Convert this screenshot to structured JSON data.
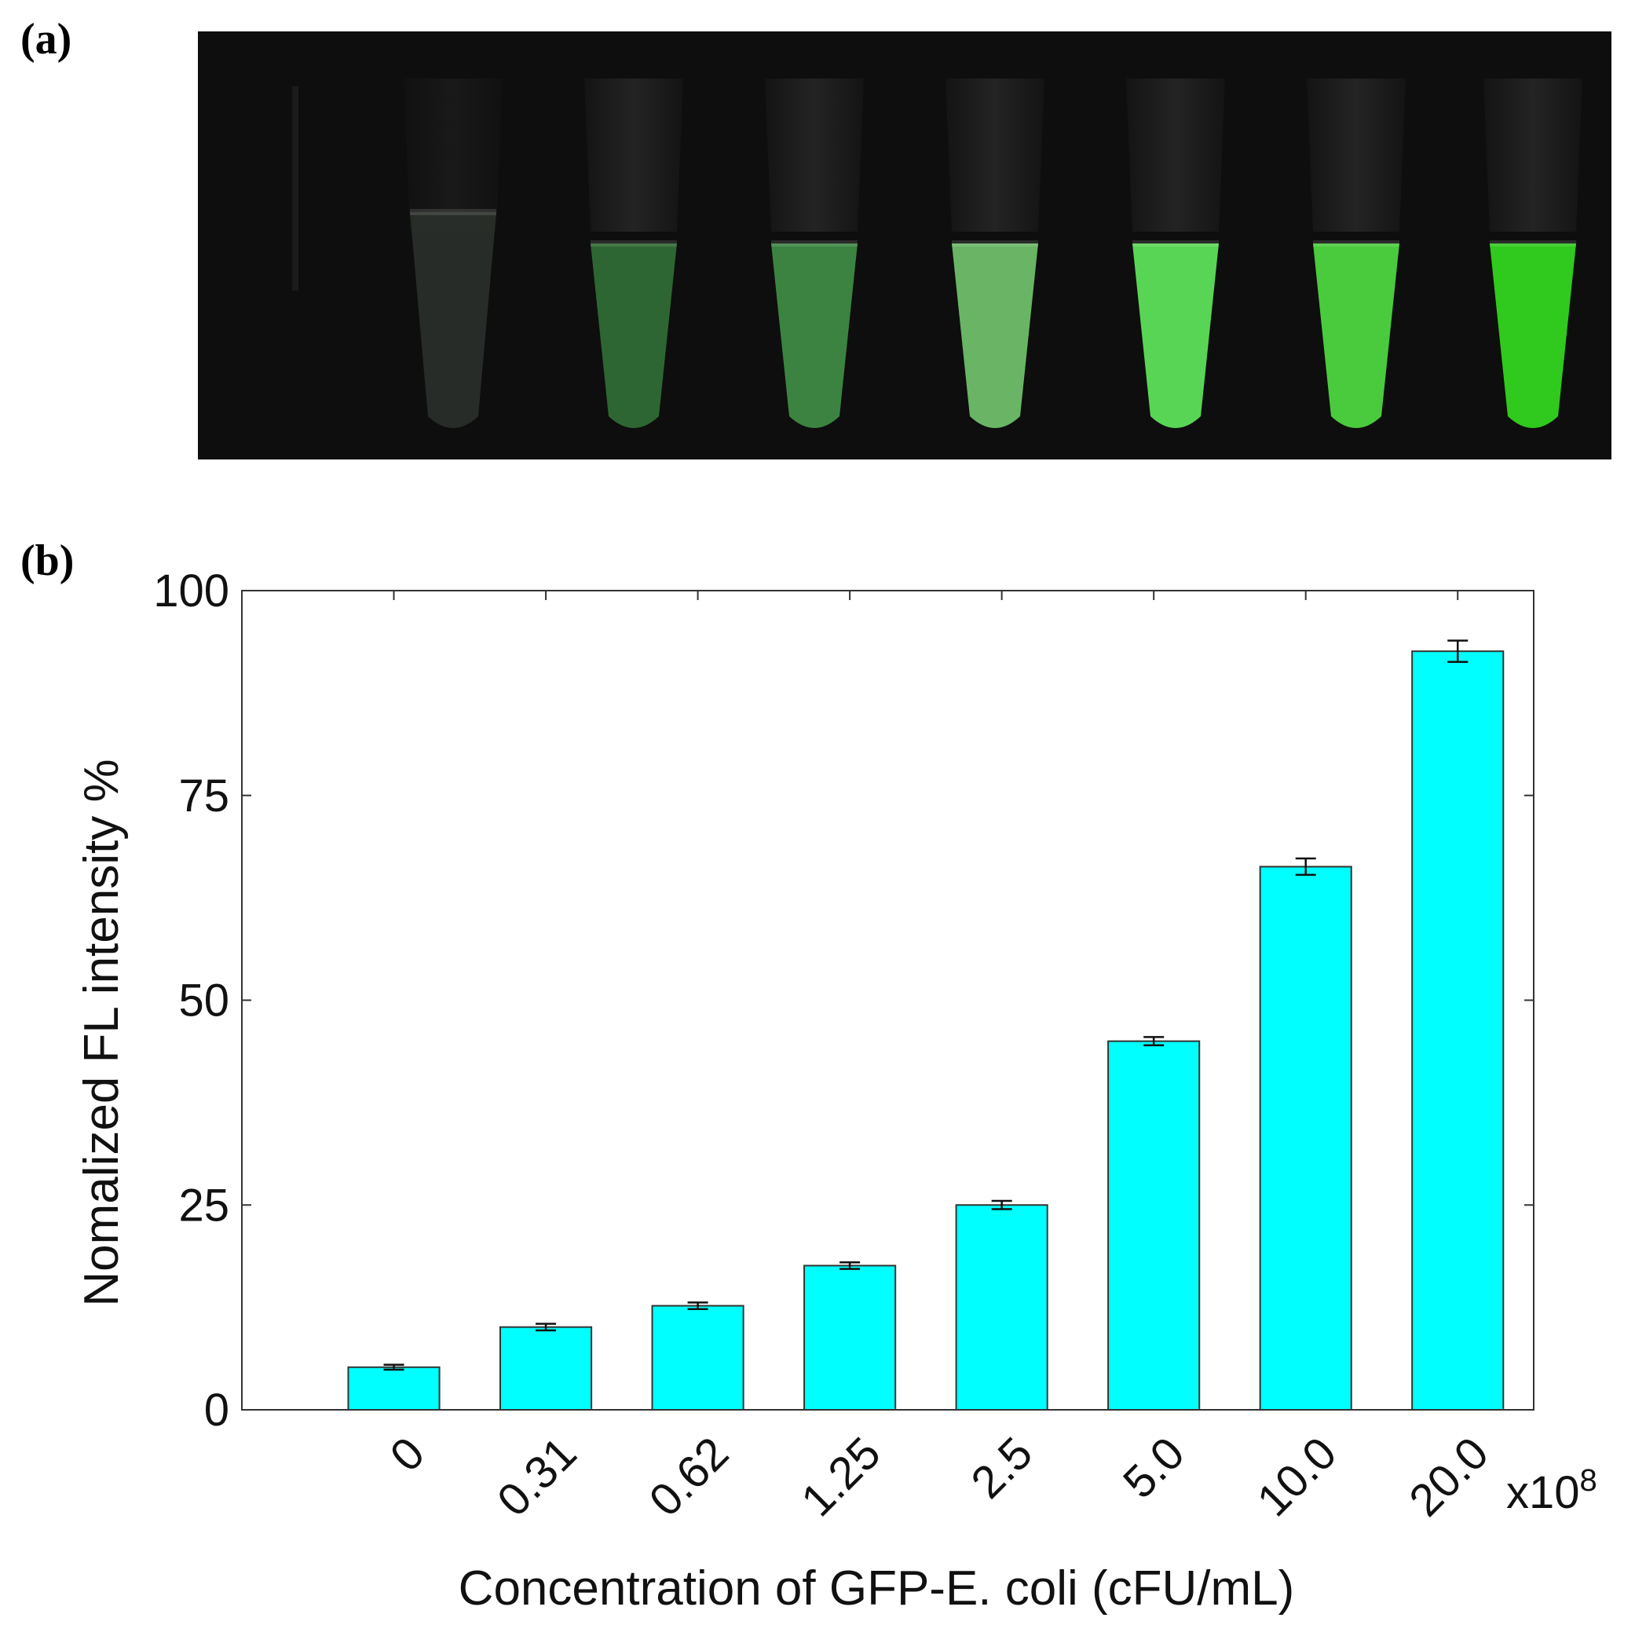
{
  "panels": {
    "a": "(a)",
    "b": "(b)"
  },
  "photo": {
    "background": "#0d0e0d",
    "tube_colors": [
      "#2a2e2a",
      "#2f6b35",
      "#3f8a45",
      "#6fbf6a",
      "#5ee05a",
      "#4ed640",
      "#33d41f"
    ]
  },
  "chart_data": {
    "type": "bar",
    "categories": [
      "0",
      "0.31",
      "0.62",
      "1.25",
      "2.5",
      "5.0",
      "10.0",
      "20.0"
    ],
    "values": [
      5.2,
      10.1,
      12.7,
      17.6,
      25.0,
      45.0,
      66.3,
      92.6
    ],
    "errors": [
      0.3,
      0.4,
      0.4,
      0.4,
      0.5,
      0.5,
      1.0,
      1.3
    ],
    "ylim": [
      0,
      100
    ],
    "yticks": [
      "0",
      "25",
      "50",
      "75",
      "100"
    ],
    "ylabel": "Nomalized FL intensity %",
    "xlabel": "Concentration of GFP-E. coli (cFU/mL)",
    "x_multiplier": "x10",
    "x_multiplier_exp": "8",
    "bar_color": "#00ffff"
  }
}
